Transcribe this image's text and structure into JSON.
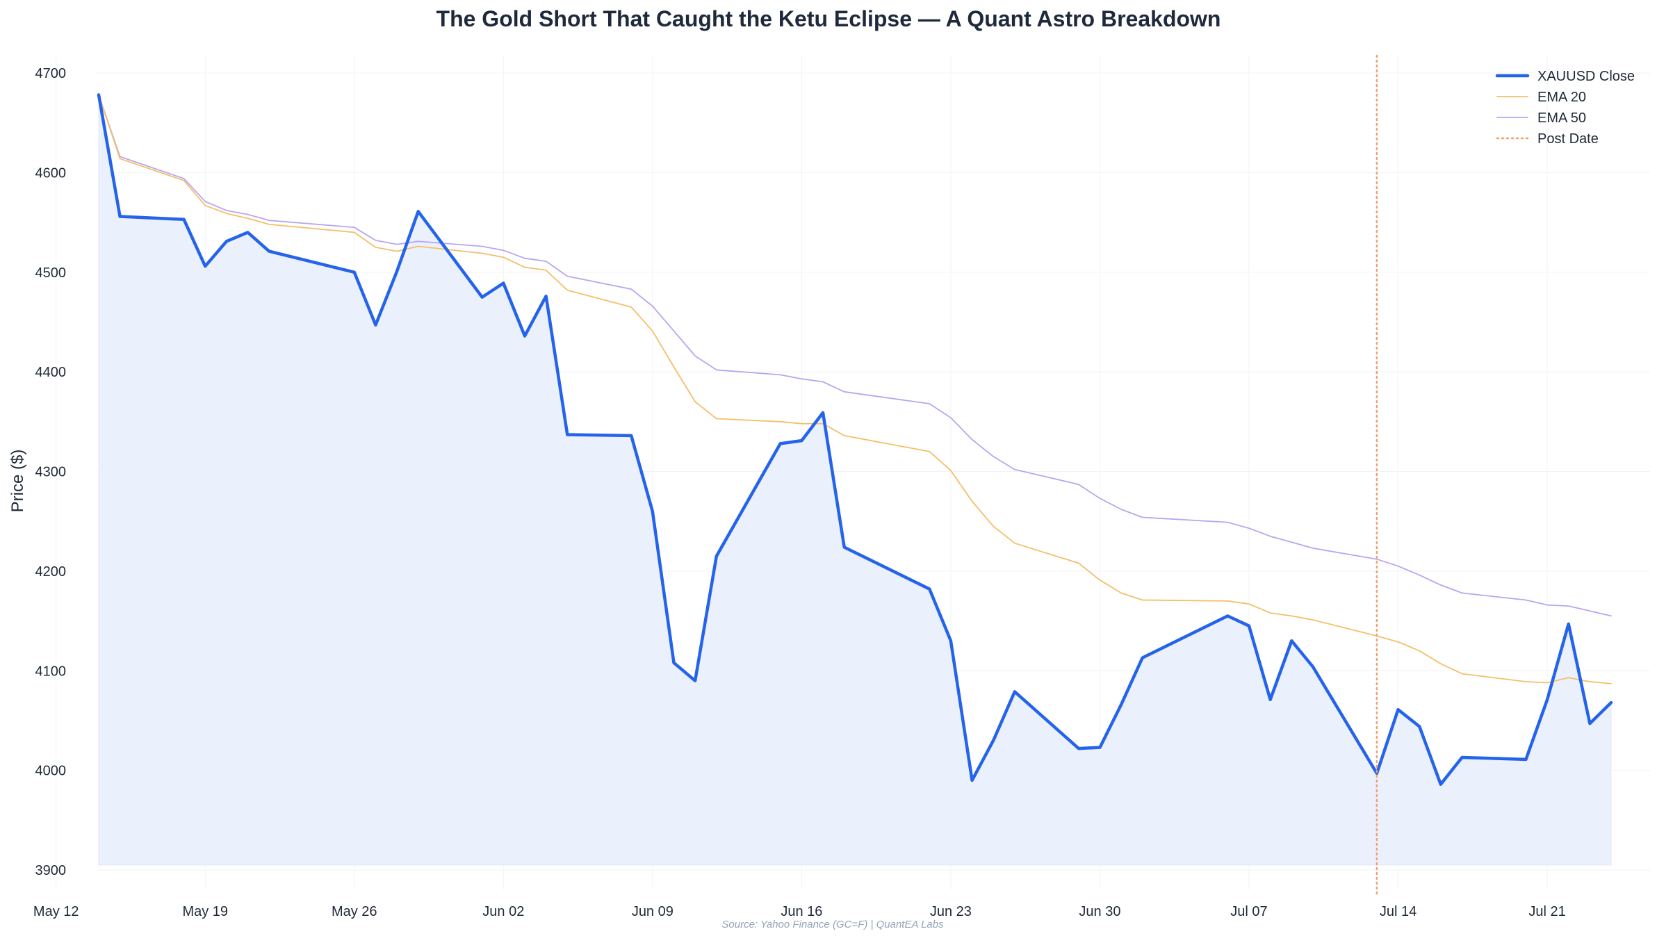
{
  "chart_data": {
    "type": "line",
    "title": "The Gold Short That Caught the Ketu Eclipse — A Quant Astro Breakdown",
    "ylabel": "Price ($)",
    "xlabel": "",
    "ylim": [
      3900,
      4700
    ],
    "xlim": [
      "2026-05-12",
      "2026-07-26"
    ],
    "yticks": [
      3900,
      4000,
      4100,
      4200,
      4300,
      4400,
      4500,
      4600,
      4700
    ],
    "xticks": [
      {
        "date": "2026-05-12",
        "label": "May 12"
      },
      {
        "date": "2026-05-19",
        "label": "May 19"
      },
      {
        "date": "2026-05-26",
        "label": "May 26"
      },
      {
        "date": "2026-06-02",
        "label": "Jun 02"
      },
      {
        "date": "2026-06-09",
        "label": "Jun 09"
      },
      {
        "date": "2026-06-16",
        "label": "Jun 16"
      },
      {
        "date": "2026-06-23",
        "label": "Jun 23"
      },
      {
        "date": "2026-06-30",
        "label": "Jun 30"
      },
      {
        "date": "2026-07-07",
        "label": "Jul 07"
      },
      {
        "date": "2026-07-14",
        "label": "Jul 14"
      },
      {
        "date": "2026-07-21",
        "label": "Jul 21"
      }
    ],
    "grid": true,
    "legend_position": "top-right",
    "x": [
      "2026-05-14",
      "2026-05-15",
      "2026-05-18",
      "2026-05-19",
      "2026-05-20",
      "2026-05-21",
      "2026-05-22",
      "2026-05-26",
      "2026-05-27",
      "2026-05-28",
      "2026-05-29",
      "2026-06-01",
      "2026-06-02",
      "2026-06-03",
      "2026-06-04",
      "2026-06-05",
      "2026-06-08",
      "2026-06-09",
      "2026-06-10",
      "2026-06-11",
      "2026-06-12",
      "2026-06-15",
      "2026-06-16",
      "2026-06-17",
      "2026-06-18",
      "2026-06-22",
      "2026-06-23",
      "2026-06-24",
      "2026-06-25",
      "2026-06-26",
      "2026-06-29",
      "2026-06-30",
      "2026-07-01",
      "2026-07-02",
      "2026-07-06",
      "2026-07-07",
      "2026-07-08",
      "2026-07-09",
      "2026-07-10",
      "2026-07-13",
      "2026-07-14",
      "2026-07-15",
      "2026-07-16",
      "2026-07-17",
      "2026-07-20",
      "2026-07-21",
      "2026-07-22",
      "2026-07-23",
      "2026-07-24"
    ],
    "series": [
      {
        "name": "XAUUSD Close",
        "color": "#2563eb",
        "style": "solid-thick",
        "fill": "#eaf1fc",
        "values": [
          4678,
          4556,
          4553,
          4506,
          4531,
          4540,
          4521,
          4500,
          4447,
          4501,
          4561,
          4475,
          4489,
          4436,
          4476,
          4337,
          4336,
          4260,
          4108,
          4090,
          4215,
          4328,
          4331,
          4359,
          4224,
          4182,
          4130,
          3990,
          4030,
          4079,
          4022,
          4023,
          4066,
          4113,
          4155,
          4145,
          4071,
          4130,
          4104,
          3997,
          4061,
          4044,
          3986,
          4013,
          4011,
          4071,
          4147,
          4047,
          4068
        ]
      },
      {
        "name": "EMA 20",
        "color": "#f5be68",
        "style": "solid-thin",
        "values": [
          4678,
          4614,
          4592,
          4567,
          4559,
          4554,
          4548,
          4540,
          4525,
          4521,
          4526,
          4519,
          4515,
          4505,
          4502,
          4482,
          4465,
          4441,
          4405,
          4370,
          4353,
          4350,
          4348,
          4348,
          4336,
          4320,
          4301,
          4270,
          4245,
          4228,
          4208,
          4191,
          4178,
          4171,
          4170,
          4167,
          4158,
          4155,
          4151,
          4135,
          4129,
          4120,
          4107,
          4097,
          4089,
          4088,
          4093,
          4089,
          4087
        ]
      },
      {
        "name": "EMA 50",
        "color": "#b9a5f0",
        "style": "solid-thin",
        "values": [
          4678,
          4616,
          4594,
          4571,
          4562,
          4558,
          4552,
          4545,
          4532,
          4528,
          4531,
          4526,
          4522,
          4514,
          4511,
          4496,
          4483,
          4466,
          4441,
          4416,
          4402,
          4397,
          4393,
          4390,
          4380,
          4368,
          4354,
          4332,
          4315,
          4302,
          4287,
          4273,
          4262,
          4254,
          4249,
          4243,
          4235,
          4229,
          4223,
          4212,
          4205,
          4196,
          4186,
          4178,
          4171,
          4166,
          4165,
          4160,
          4155
        ]
      }
    ],
    "annotations": [
      {
        "type": "vline",
        "label": "Post Date",
        "x": "2026-07-13",
        "color": "#f0a070",
        "style": "dotted"
      }
    ],
    "source": "Source: Yahoo Finance (GC=F) | QuantEA Labs"
  }
}
